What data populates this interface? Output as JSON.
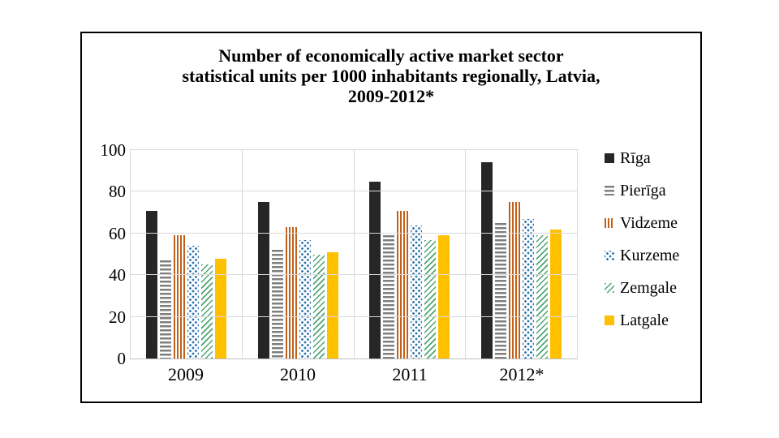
{
  "page": {
    "background": "#ffffff",
    "frame_border_color": "#000000"
  },
  "chart_data": {
    "type": "bar",
    "title": "Number of economically active market sector statistical units per 1000 inhabitants regionally, Latvia, 2009-2012*",
    "title_lines": [
      "Number of economically active market sector",
      "statistical units per 1000 inhabitants regionally, Latvia,",
      "2009-2012*"
    ],
    "categories": [
      "2009",
      "2010",
      "2011",
      "2012*"
    ],
    "series": [
      {
        "name": "Rīga",
        "style": "riga",
        "fill": "solid",
        "color": "#262626",
        "values": [
          71,
          75,
          85,
          94
        ]
      },
      {
        "name": "Pierīga",
        "style": "pieriga",
        "fill": "horizontal-stripes",
        "color": "#7F7F7F",
        "values": [
          47,
          52,
          59,
          65
        ]
      },
      {
        "name": "Vidzeme",
        "style": "vidzeme",
        "fill": "vertical-stripes",
        "color": "#C0601A",
        "values": [
          59,
          63,
          71,
          75
        ]
      },
      {
        "name": "Kurzeme",
        "style": "kurzeme",
        "fill": "dots",
        "color": "#2E75B6",
        "values": [
          54,
          57,
          64,
          67
        ]
      },
      {
        "name": "Zemgale",
        "style": "zemgale",
        "fill": "diagonal-stripes",
        "color": "#4CA572",
        "values": [
          45,
          50,
          57,
          59
        ]
      },
      {
        "name": "Latgale",
        "style": "latgale",
        "fill": "solid",
        "color": "#FFC000",
        "values": [
          48,
          51,
          59,
          62
        ]
      }
    ],
    "y_axis": {
      "min": 0,
      "max": 100,
      "step": 20,
      "ticks": [
        0,
        20,
        40,
        60,
        80,
        100
      ]
    },
    "x_axis": {
      "labels": [
        "2009",
        "2010",
        "2011",
        "2012*"
      ]
    },
    "legend": {
      "position": "right",
      "entries": [
        "Rīga",
        "Pierīga",
        "Vidzeme",
        "Kurzeme",
        "Zemgale",
        "Latgale"
      ]
    },
    "grid": true,
    "gridline_color": "#D9D9D9",
    "axis_line_color": "#BFBFBF"
  }
}
